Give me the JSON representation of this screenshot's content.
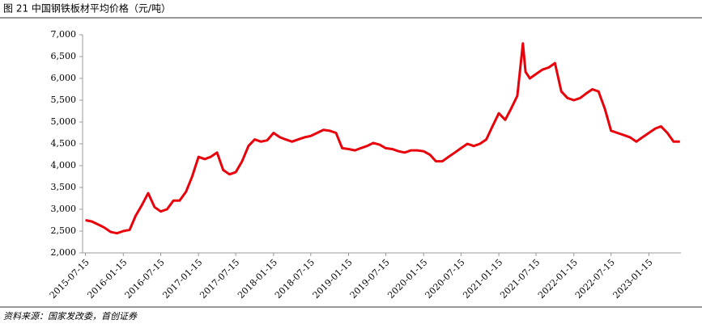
{
  "chart_data": {
    "type": "line",
    "title": "图 21  中国钢铁板材平均价格（元/吨）",
    "source": "资料来源：国家发改委，首创证券",
    "x": [
      "2015-07-15",
      "2015-08-15",
      "2015-09-15",
      "2015-10-15",
      "2015-11-15",
      "2015-12-15",
      "2016-01-15",
      "2016-02-15",
      "2016-03-15",
      "2016-04-15",
      "2016-05-15",
      "2016-06-15",
      "2016-07-15",
      "2016-08-15",
      "2016-09-15",
      "2016-10-15",
      "2016-11-15",
      "2016-12-15",
      "2017-01-15",
      "2017-02-15",
      "2017-03-15",
      "2017-04-15",
      "2017-05-15",
      "2017-06-15",
      "2017-07-15",
      "2017-08-15",
      "2017-09-15",
      "2017-10-15",
      "2017-11-15",
      "2017-12-15",
      "2018-01-15",
      "2018-02-15",
      "2018-03-15",
      "2018-04-15",
      "2018-05-15",
      "2018-06-15",
      "2018-07-15",
      "2018-08-15",
      "2018-09-15",
      "2018-10-15",
      "2018-11-15",
      "2018-12-15",
      "2019-01-15",
      "2019-02-15",
      "2019-03-15",
      "2019-04-15",
      "2019-05-15",
      "2019-06-15",
      "2019-07-15",
      "2019-08-15",
      "2019-09-15",
      "2019-10-15",
      "2019-11-15",
      "2019-12-15",
      "2020-01-15",
      "2020-02-15",
      "2020-03-15",
      "2020-04-15",
      "2020-05-15",
      "2020-06-15",
      "2020-07-15",
      "2020-08-15",
      "2020-09-15",
      "2020-10-15",
      "2020-11-15",
      "2020-12-15",
      "2021-01-15",
      "2021-02-15",
      "2021-03-15",
      "2021-04-15",
      "2021-05-12",
      "2021-05-25",
      "2021-06-15",
      "2021-07-15",
      "2021-08-15",
      "2021-09-15",
      "2021-10-15",
      "2021-11-15",
      "2021-12-15",
      "2022-01-15",
      "2022-02-15",
      "2022-03-15",
      "2022-04-15",
      "2022-05-15",
      "2022-06-15",
      "2022-07-15",
      "2022-08-15",
      "2022-09-15",
      "2022-10-15",
      "2022-11-15",
      "2022-12-15",
      "2023-01-15",
      "2023-02-15",
      "2023-03-15",
      "2023-04-15",
      "2023-05-15",
      "2023-06-15"
    ],
    "series": [
      {
        "name": "中国钢铁板材平均价格",
        "color": "#e8000b",
        "values": [
          2750,
          2720,
          2650,
          2580,
          2480,
          2450,
          2500,
          2530,
          2850,
          3100,
          3370,
          3050,
          2950,
          3000,
          3200,
          3200,
          3400,
          3750,
          4200,
          4150,
          4200,
          4300,
          3900,
          3800,
          3850,
          4100,
          4450,
          4600,
          4550,
          4580,
          4750,
          4650,
          4600,
          4550,
          4600,
          4650,
          4680,
          4750,
          4820,
          4800,
          4750,
          4400,
          4380,
          4350,
          4400,
          4450,
          4520,
          4480,
          4400,
          4380,
          4330,
          4300,
          4350,
          4350,
          4330,
          4250,
          4100,
          4100,
          4200,
          4300,
          4400,
          4500,
          4450,
          4500,
          4600,
          4900,
          5200,
          5050,
          5300,
          5600,
          6800,
          6150,
          6000,
          6100,
          6200,
          6250,
          6350,
          5700,
          5550,
          5500,
          5550,
          5650,
          5750,
          5700,
          5300,
          4800,
          4750,
          4700,
          4650,
          4550,
          4650,
          4750,
          4850,
          4900,
          4750,
          4550,
          4550
        ]
      }
    ],
    "xlim": [
      "2015-07-01",
      "2023-06-20"
    ],
    "xticks": [
      "2015-07-15",
      "2016-01-15",
      "2016-07-15",
      "2017-01-15",
      "2017-07-15",
      "2018-01-15",
      "2018-07-15",
      "2019-01-15",
      "2019-07-15",
      "2020-01-15",
      "2020-07-15",
      "2021-01-15",
      "2021-07-15",
      "2022-01-15",
      "2022-07-15",
      "2023-01-15"
    ],
    "ylim": [
      2000,
      7000
    ],
    "yticks": [
      {
        "value": 2000,
        "label": "2,000"
      },
      {
        "value": 2500,
        "label": "2,500"
      },
      {
        "value": 3000,
        "label": "3,000"
      },
      {
        "value": 3500,
        "label": "3,500"
      },
      {
        "value": 4000,
        "label": "4,000"
      },
      {
        "value": 4500,
        "label": "4,500"
      },
      {
        "value": 5000,
        "label": "5,000"
      },
      {
        "value": 5500,
        "label": "5,500"
      },
      {
        "value": 6000,
        "label": "6,000"
      },
      {
        "value": 6500,
        "label": "6,500"
      },
      {
        "value": 7000,
        "label": "7,000"
      }
    ],
    "grid": false
  }
}
